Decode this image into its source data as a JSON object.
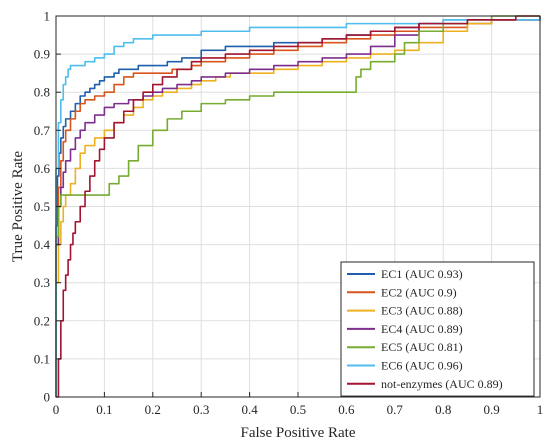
{
  "chart_data": {
    "type": "line",
    "xlabel": "False Positive Rate",
    "ylabel": "True Positive Rate",
    "xlim": [
      0,
      1
    ],
    "ylim": [
      0,
      1
    ],
    "x_ticks": [
      "0",
      "0.1",
      "0.2",
      "0.3",
      "0.4",
      "0.5",
      "0.6",
      "0.7",
      "0.8",
      "0.9",
      "1"
    ],
    "y_ticks": [
      "0",
      "0.1",
      "0.2",
      "0.3",
      "0.4",
      "0.5",
      "0.6",
      "0.7",
      "0.8",
      "0.9",
      "1"
    ],
    "grid": true,
    "legend_position": "bottom-right",
    "series": [
      {
        "name": "EC1 (AUC 0.93)",
        "color": "#1f5fad",
        "points": [
          [
            0,
            0
          ],
          [
            0,
            0.45
          ],
          [
            0.003,
            0.58
          ],
          [
            0.006,
            0.64
          ],
          [
            0.01,
            0.68
          ],
          [
            0.015,
            0.71
          ],
          [
            0.02,
            0.73
          ],
          [
            0.03,
            0.75
          ],
          [
            0.04,
            0.77
          ],
          [
            0.05,
            0.79
          ],
          [
            0.06,
            0.8
          ],
          [
            0.07,
            0.81
          ],
          [
            0.08,
            0.82
          ],
          [
            0.09,
            0.83
          ],
          [
            0.1,
            0.84
          ],
          [
            0.12,
            0.85
          ],
          [
            0.13,
            0.86
          ],
          [
            0.15,
            0.86
          ],
          [
            0.17,
            0.87
          ],
          [
            0.2,
            0.87
          ],
          [
            0.23,
            0.88
          ],
          [
            0.26,
            0.89
          ],
          [
            0.3,
            0.91
          ],
          [
            0.35,
            0.92
          ],
          [
            0.4,
            0.92
          ],
          [
            0.45,
            0.93
          ],
          [
            0.5,
            0.93
          ],
          [
            0.55,
            0.94
          ],
          [
            0.6,
            0.95
          ],
          [
            0.65,
            0.96
          ],
          [
            0.7,
            0.97
          ],
          [
            0.75,
            0.98
          ],
          [
            0.8,
            0.98
          ],
          [
            0.85,
            0.98
          ],
          [
            0.9,
            0.99
          ],
          [
            0.95,
            0.99
          ],
          [
            1,
            1
          ]
        ]
      },
      {
        "name": "EC2 (AUC 0.9)",
        "color": "#d9541a",
        "points": [
          [
            0,
            0
          ],
          [
            0,
            0.4
          ],
          [
            0.005,
            0.55
          ],
          [
            0.01,
            0.62
          ],
          [
            0.015,
            0.67
          ],
          [
            0.02,
            0.7
          ],
          [
            0.03,
            0.73
          ],
          [
            0.04,
            0.75
          ],
          [
            0.05,
            0.77
          ],
          [
            0.06,
            0.78
          ],
          [
            0.08,
            0.79
          ],
          [
            0.1,
            0.8
          ],
          [
            0.12,
            0.82
          ],
          [
            0.14,
            0.84
          ],
          [
            0.16,
            0.85
          ],
          [
            0.2,
            0.85
          ],
          [
            0.24,
            0.86
          ],
          [
            0.28,
            0.87
          ],
          [
            0.3,
            0.88
          ],
          [
            0.35,
            0.89
          ],
          [
            0.4,
            0.9
          ],
          [
            0.45,
            0.91
          ],
          [
            0.5,
            0.92
          ],
          [
            0.55,
            0.93
          ],
          [
            0.6,
            0.94
          ],
          [
            0.65,
            0.95
          ],
          [
            0.7,
            0.96
          ],
          [
            0.75,
            0.97
          ],
          [
            0.8,
            0.97
          ],
          [
            0.85,
            0.98
          ],
          [
            0.9,
            0.99
          ],
          [
            0.95,
            0.99
          ],
          [
            1,
            1
          ]
        ]
      },
      {
        "name": "EC3 (AUC 0.88)",
        "color": "#edb120",
        "points": [
          [
            0,
            0
          ],
          [
            0,
            0.3
          ],
          [
            0.005,
            0.4
          ],
          [
            0.01,
            0.46
          ],
          [
            0.015,
            0.5
          ],
          [
            0.02,
            0.53
          ],
          [
            0.03,
            0.56
          ],
          [
            0.04,
            0.6
          ],
          [
            0.05,
            0.64
          ],
          [
            0.06,
            0.66
          ],
          [
            0.08,
            0.68
          ],
          [
            0.1,
            0.7
          ],
          [
            0.12,
            0.72
          ],
          [
            0.14,
            0.74
          ],
          [
            0.16,
            0.76
          ],
          [
            0.18,
            0.78
          ],
          [
            0.2,
            0.79
          ],
          [
            0.22,
            0.8
          ],
          [
            0.25,
            0.81
          ],
          [
            0.28,
            0.82
          ],
          [
            0.3,
            0.83
          ],
          [
            0.33,
            0.84
          ],
          [
            0.36,
            0.85
          ],
          [
            0.4,
            0.85
          ],
          [
            0.45,
            0.86
          ],
          [
            0.5,
            0.87
          ],
          [
            0.55,
            0.88
          ],
          [
            0.6,
            0.89
          ],
          [
            0.65,
            0.9
          ],
          [
            0.7,
            0.91
          ],
          [
            0.75,
            0.93
          ],
          [
            0.8,
            0.96
          ],
          [
            0.85,
            0.98
          ],
          [
            0.9,
            0.99
          ],
          [
            1,
            1
          ]
        ]
      },
      {
        "name": "EC4 (AUC 0.89)",
        "color": "#7e2f8e",
        "points": [
          [
            0,
            0
          ],
          [
            0,
            0.4
          ],
          [
            0.005,
            0.5
          ],
          [
            0.01,
            0.55
          ],
          [
            0.015,
            0.59
          ],
          [
            0.02,
            0.62
          ],
          [
            0.03,
            0.65
          ],
          [
            0.04,
            0.68
          ],
          [
            0.05,
            0.7
          ],
          [
            0.06,
            0.72
          ],
          [
            0.08,
            0.74
          ],
          [
            0.1,
            0.76
          ],
          [
            0.12,
            0.77
          ],
          [
            0.15,
            0.78
          ],
          [
            0.18,
            0.79
          ],
          [
            0.2,
            0.8
          ],
          [
            0.22,
            0.81
          ],
          [
            0.25,
            0.82
          ],
          [
            0.28,
            0.83
          ],
          [
            0.3,
            0.84
          ],
          [
            0.35,
            0.85
          ],
          [
            0.4,
            0.86
          ],
          [
            0.45,
            0.87
          ],
          [
            0.5,
            0.88
          ],
          [
            0.55,
            0.89
          ],
          [
            0.6,
            0.9
          ],
          [
            0.65,
            0.92
          ],
          [
            0.7,
            0.95
          ],
          [
            0.75,
            0.98
          ],
          [
            0.8,
            0.99
          ],
          [
            0.9,
            0.99
          ],
          [
            1,
            1
          ]
        ]
      },
      {
        "name": "EC5 (AUC 0.81)",
        "color": "#77ac30",
        "points": [
          [
            0,
            0
          ],
          [
            0,
            0.42
          ],
          [
            0.005,
            0.5
          ],
          [
            0.01,
            0.53
          ],
          [
            0.05,
            0.53
          ],
          [
            0.1,
            0.53
          ],
          [
            0.11,
            0.56
          ],
          [
            0.13,
            0.58
          ],
          [
            0.15,
            0.62
          ],
          [
            0.17,
            0.66
          ],
          [
            0.2,
            0.7
          ],
          [
            0.23,
            0.73
          ],
          [
            0.26,
            0.75
          ],
          [
            0.3,
            0.77
          ],
          [
            0.35,
            0.78
          ],
          [
            0.4,
            0.79
          ],
          [
            0.45,
            0.8
          ],
          [
            0.5,
            0.8
          ],
          [
            0.55,
            0.8
          ],
          [
            0.61,
            0.8
          ],
          [
            0.62,
            0.84
          ],
          [
            0.63,
            0.86
          ],
          [
            0.65,
            0.88
          ],
          [
            0.7,
            0.9
          ],
          [
            0.72,
            0.93
          ],
          [
            0.75,
            0.96
          ],
          [
            0.8,
            0.98
          ],
          [
            0.85,
            0.99
          ],
          [
            0.9,
            1.0
          ],
          [
            1,
            1
          ]
        ]
      },
      {
        "name": "EC6 (AUC 0.96)",
        "color": "#4dbeee",
        "points": [
          [
            0,
            0
          ],
          [
            0,
            0.6
          ],
          [
            0.005,
            0.72
          ],
          [
            0.01,
            0.78
          ],
          [
            0.015,
            0.82
          ],
          [
            0.02,
            0.84
          ],
          [
            0.025,
            0.86
          ],
          [
            0.03,
            0.87
          ],
          [
            0.05,
            0.87
          ],
          [
            0.06,
            0.88
          ],
          [
            0.08,
            0.89
          ],
          [
            0.1,
            0.9
          ],
          [
            0.12,
            0.92
          ],
          [
            0.14,
            0.93
          ],
          [
            0.16,
            0.94
          ],
          [
            0.2,
            0.95
          ],
          [
            0.3,
            0.96
          ],
          [
            0.4,
            0.97
          ],
          [
            0.5,
            0.97
          ],
          [
            0.6,
            0.98
          ],
          [
            0.7,
            0.98
          ],
          [
            0.8,
            0.99
          ],
          [
            0.9,
            0.99
          ],
          [
            1,
            1
          ]
        ]
      },
      {
        "name": "not-enzymes (AUC 0.89)",
        "color": "#a2142f",
        "points": [
          [
            0,
            0
          ],
          [
            0.005,
            0.1
          ],
          [
            0.01,
            0.2
          ],
          [
            0.015,
            0.28
          ],
          [
            0.02,
            0.32
          ],
          [
            0.025,
            0.36
          ],
          [
            0.03,
            0.4
          ],
          [
            0.035,
            0.43
          ],
          [
            0.04,
            0.46
          ],
          [
            0.05,
            0.5
          ],
          [
            0.06,
            0.54
          ],
          [
            0.07,
            0.58
          ],
          [
            0.08,
            0.62
          ],
          [
            0.09,
            0.65
          ],
          [
            0.1,
            0.68
          ],
          [
            0.12,
            0.72
          ],
          [
            0.14,
            0.75
          ],
          [
            0.16,
            0.78
          ],
          [
            0.18,
            0.8
          ],
          [
            0.2,
            0.82
          ],
          [
            0.22,
            0.84
          ],
          [
            0.25,
            0.86
          ],
          [
            0.28,
            0.88
          ],
          [
            0.3,
            0.89
          ],
          [
            0.35,
            0.9
          ],
          [
            0.4,
            0.91
          ],
          [
            0.45,
            0.92
          ],
          [
            0.5,
            0.93
          ],
          [
            0.55,
            0.94
          ],
          [
            0.6,
            0.95
          ],
          [
            0.65,
            0.96
          ],
          [
            0.7,
            0.97
          ],
          [
            0.75,
            0.98
          ],
          [
            0.8,
            0.98
          ],
          [
            0.85,
            0.99
          ],
          [
            0.9,
            0.99
          ],
          [
            0.95,
            1.0
          ],
          [
            1,
            1
          ]
        ]
      }
    ]
  }
}
